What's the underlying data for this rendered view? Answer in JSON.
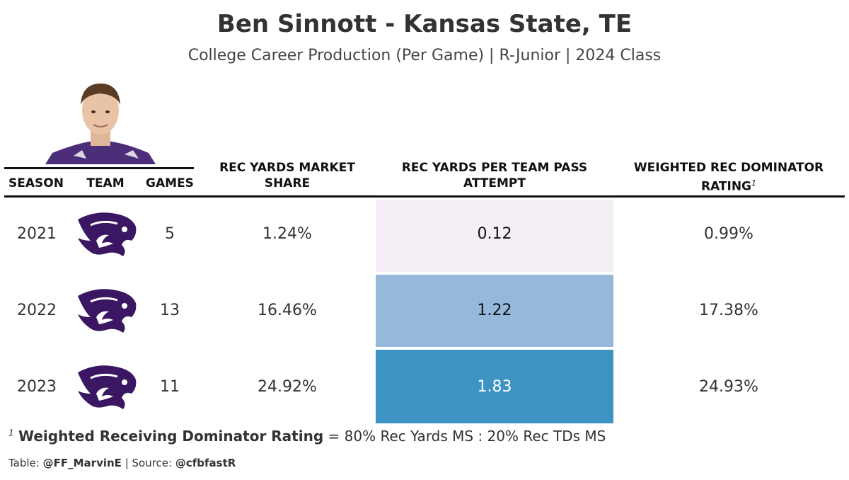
{
  "title": "Ben Sinnott - Kansas State, TE",
  "subtitle": "College Career Production (Per Game) | R-Junior | 2024 Class",
  "headers": {
    "season": "SEASON",
    "team": "TEAM",
    "games": "GAMES",
    "market_share_line1": "REC YARDS MARKET",
    "market_share_line2": "SHARE",
    "per_attempt_line1": "REC YARDS PER TEAM PASS",
    "per_attempt_line2": "ATTEMPT",
    "dominator_line1": "WEIGHTED REC DOMINATOR",
    "dominator_line2": "RATING",
    "dominator_footnote_mark": "1"
  },
  "rows": [
    {
      "season": "2021",
      "team_logo": "kansas-state-wildcat-logo",
      "games": "5",
      "market_share": "1.24%",
      "per_attempt": "0.12",
      "per_attempt_value": 0.12,
      "dominator": "0.99%"
    },
    {
      "season": "2022",
      "team_logo": "kansas-state-wildcat-logo",
      "games": "13",
      "market_share": "16.46%",
      "per_attempt": "1.22",
      "per_attempt_value": 1.22,
      "dominator": "17.38%"
    },
    {
      "season": "2023",
      "team_logo": "kansas-state-wildcat-logo",
      "games": "11",
      "market_share": "24.92%",
      "per_attempt": "1.83",
      "per_attempt_value": 1.83,
      "dominator": "24.93%"
    }
  ],
  "heat_colors": [
    "#f6eef7",
    "#96b8db",
    "#3d93c4"
  ],
  "team_color": "#3b1763",
  "footnote": {
    "mark": "1",
    "bold": "Weighted Receiving Dominator Rating",
    "text": " = 80% Rec Yards MS : 20% Rec TDs MS"
  },
  "credit": {
    "prefix": "Table: ",
    "author": "@FF_MarvinE",
    "separator": " | Source: ",
    "source": "@cfbfastR"
  }
}
